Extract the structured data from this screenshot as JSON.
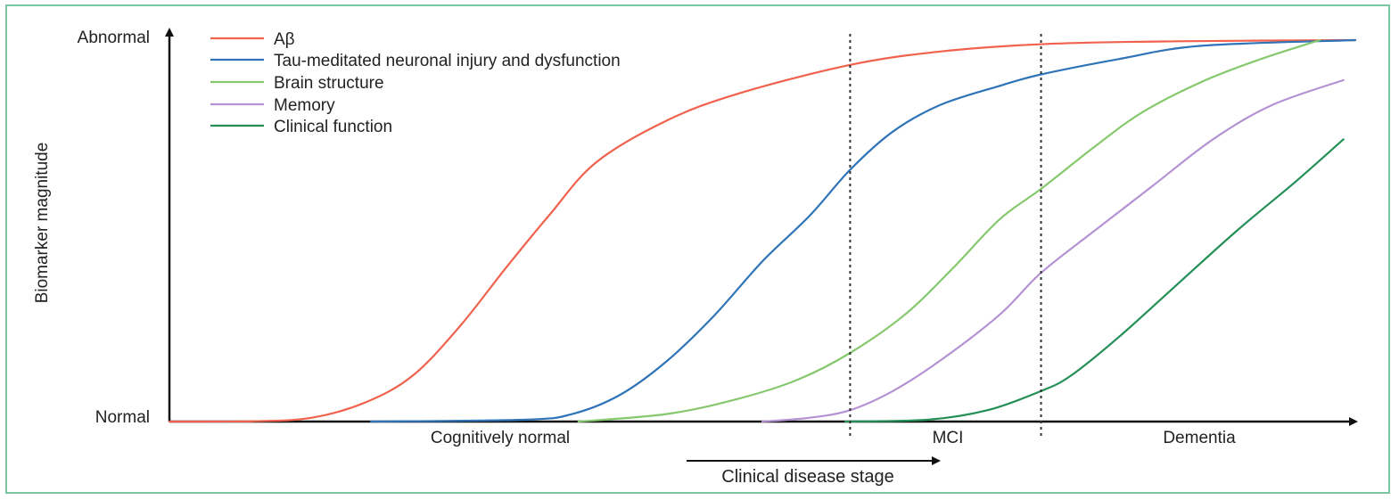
{
  "chart_data": {
    "type": "line",
    "title": "",
    "xlabel": "Clinical disease stage",
    "ylabel": "Biomarker magnitude",
    "y_ticks": [
      "Normal",
      "Abnormal"
    ],
    "ylim": [
      0,
      1
    ],
    "stages": [
      "Cognitively normal",
      "MCI",
      "Dementia"
    ],
    "series": [
      {
        "name": "Aβ",
        "color": "#f0624d",
        "x": [
          0.0,
          0.071,
          0.12,
          0.165,
          0.205,
          0.245,
          0.283,
          0.32,
          0.36,
          0.42,
          0.48,
          0.574,
          0.65,
          0.74,
          0.85,
          1.0
        ],
        "y": [
          0.0,
          0.001,
          0.01,
          0.05,
          0.12,
          0.25,
          0.4,
          0.54,
          0.68,
          0.79,
          0.86,
          0.935,
          0.97,
          0.99,
          0.997,
          1.0
        ]
      },
      {
        "name": "Tau-meditated neuronal injury and dysfunction",
        "color": "#2f73b8",
        "x": [
          0.17,
          0.3,
          0.34,
          0.38,
          0.42,
          0.46,
          0.5,
          0.54,
          0.574,
          0.61,
          0.65,
          0.7,
          0.735,
          0.8,
          0.87,
          1.0
        ],
        "y": [
          0.0,
          0.005,
          0.02,
          0.07,
          0.16,
          0.28,
          0.42,
          0.54,
          0.66,
          0.76,
          0.83,
          0.88,
          0.91,
          0.95,
          0.985,
          1.0
        ]
      },
      {
        "name": "Brain structure",
        "color": "#86c86e",
        "x": [
          0.345,
          0.42,
          0.48,
          0.53,
          0.574,
          0.62,
          0.66,
          0.7,
          0.735,
          0.78,
          0.82,
          0.87,
          0.92,
          0.97
        ],
        "y": [
          0.0,
          0.02,
          0.06,
          0.11,
          0.18,
          0.28,
          0.4,
          0.53,
          0.61,
          0.72,
          0.81,
          0.89,
          0.95,
          1.0
        ]
      },
      {
        "name": "Memory",
        "color": "#b592d4",
        "x": [
          0.5,
          0.54,
          0.574,
          0.61,
          0.65,
          0.7,
          0.735,
          0.78,
          0.83,
          0.88,
          0.93,
          0.99
        ],
        "y": [
          0.0,
          0.01,
          0.03,
          0.08,
          0.16,
          0.28,
          0.39,
          0.5,
          0.62,
          0.74,
          0.83,
          0.895
        ]
      },
      {
        "name": "Clinical function",
        "color": "#248f57",
        "x": [
          0.57,
          0.64,
          0.69,
          0.735,
          0.76,
          0.8,
          0.85,
          0.9,
          0.95,
          0.99
        ],
        "y": [
          0.0,
          0.005,
          0.03,
          0.08,
          0.12,
          0.22,
          0.36,
          0.5,
          0.63,
          0.74
        ]
      }
    ],
    "stage_dividers_x": [
      0.574,
      0.735
    ],
    "grid": false,
    "legend_position": "top-left"
  }
}
